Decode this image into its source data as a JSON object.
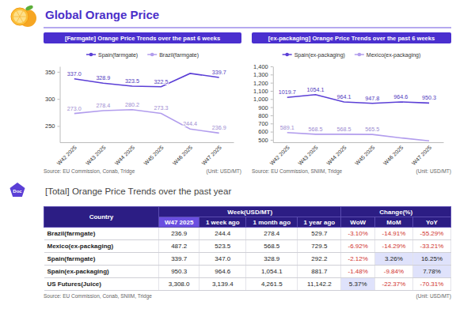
{
  "header": {
    "title": "Global Orange Price"
  },
  "chart_data": [
    {
      "type": "line",
      "title": "[Farmgate] Orange Price Trends over the past 6 weeks",
      "categories": [
        "W42 2025",
        "W43 2025",
        "W44 2025",
        "W45 2025",
        "W46 2025",
        "W47 2025"
      ],
      "series": [
        {
          "name": "Spain(farmgate)",
          "color": "#5b3fd6",
          "values": [
            337.0,
            328.9,
            323.5,
            322.5,
            347.0,
            339.7
          ],
          "value_labels": [
            "337.0",
            "328.9",
            "323.5",
            "322.5",
            null,
            "339.7"
          ]
        },
        {
          "name": "Brazil(farmgate)",
          "color": "#b29ded",
          "values": [
            273.0,
            278.4,
            280.2,
            273.3,
            244.4,
            236.9
          ],
          "value_labels": [
            "273.0",
            "278.4",
            "280.2",
            "273.3",
            "244.4",
            "236.9"
          ]
        }
      ],
      "ylim": [
        220,
        360
      ],
      "yticks": [
        250,
        300,
        350
      ],
      "grid": false,
      "legend": "top",
      "data_labels": true,
      "source": "Source: EU Commission, Conab, Tridge",
      "unit": "(Unit: USD/MT)"
    },
    {
      "type": "line",
      "title": "[ex-packaging] Orange Price Trends over the past 6 weeks",
      "categories": [
        "W42 2025",
        "W43 2025",
        "W44 2025",
        "W45 2025",
        "W46 2025",
        "W47 2025"
      ],
      "series": [
        {
          "name": "Spain(ex-packaging)",
          "color": "#5b3fd6",
          "values": [
            1019.7,
            1054.1,
            964.1,
            947.8,
            964.6,
            950.3
          ],
          "value_labels": [
            "1019.7",
            "1054.1",
            "964.1",
            "947.8",
            "964.6",
            "950.3"
          ]
        },
        {
          "name": "Mexico(ex-packaging)",
          "color": "#b29ded",
          "values": [
            589.1,
            568.5,
            568.5,
            565.5,
            523.5,
            487.2
          ],
          "value_labels": [
            "589.1",
            "568.5",
            "568.5",
            "565.5",
            null,
            null
          ]
        }
      ],
      "ylim": [
        470,
        1400
      ],
      "yticks": [
        500,
        600,
        700,
        800,
        900,
        {
          "value": 1000,
          "label": "1,000"
        },
        {
          "value": 1100,
          "label": "1,100"
        },
        {
          "value": 1200,
          "label": "1,200"
        },
        {
          "value": 1300,
          "label": "1,300"
        },
        {
          "value": 1400,
          "label": "1,400"
        }
      ],
      "grid": false,
      "legend": "top",
      "data_labels": true,
      "source": "Source: EU Commission, SNIIM, Tridge",
      "unit": "(Unit: USD/MT)"
    }
  ],
  "section": {
    "badge": "Doc",
    "title": "[Total] Orange Price Trends over the past year"
  },
  "table": {
    "header": [
      [
        "Country",
        "Week(USD/MT)",
        "Change(%)"
      ],
      [
        "W47 2025",
        "1 week ago",
        "1 month ago",
        "1 year ago",
        "WoW",
        "MoM",
        "YoY"
      ]
    ],
    "rows": [
      [
        "Brazil(farmgate)",
        "236.9",
        "244.4",
        "278.4",
        "529.7",
        "-3.10%",
        "-14.91%",
        "-55.29%"
      ],
      [
        "Mexico(ex-packaging)",
        "487.2",
        "523.5",
        "568.5",
        "729.5",
        "-6.92%",
        "-14.29%",
        "-33.21%"
      ],
      [
        "Spain(farmgate)",
        "339.7",
        "347.0",
        "328.9",
        "292.2",
        "-2.12%",
        "3.26%",
        "16.25%"
      ],
      [
        "Spain(ex-packaging)",
        "950.3",
        "964.6",
        "1,054.1",
        "881.7",
        "-1.48%",
        "-9.84%",
        "7.78%"
      ],
      [
        "US Futures(Juice)",
        "3,308.0",
        "3,139.4",
        "4,261.5",
        "11,142.2",
        "5.37%",
        "-22.37%",
        "-70.31%"
      ]
    ],
    "source": "Source: EU Commission, Conab, SNIIM, Tridge",
    "unit": "(Unit: USD/MT)"
  }
}
